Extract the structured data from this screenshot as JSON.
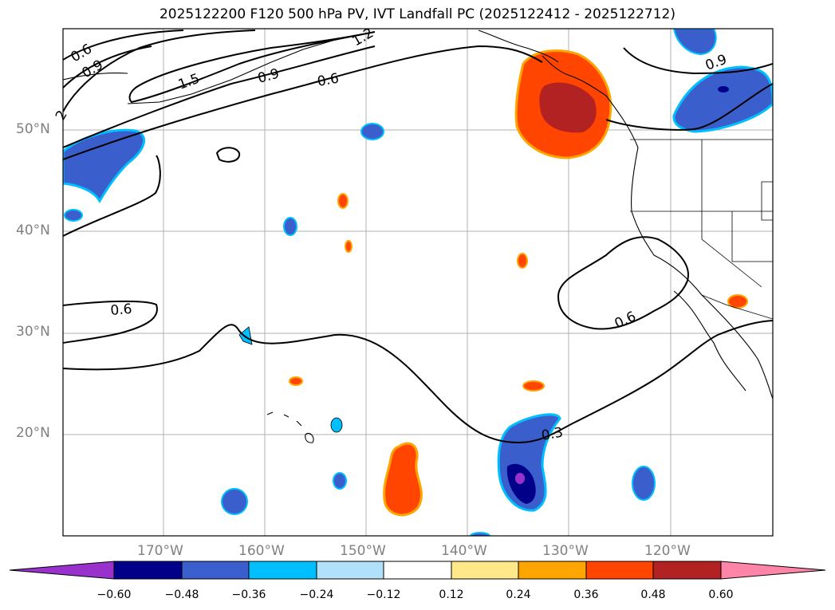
{
  "title": "2025122200 F120 500 hPa PV, IVT Landfall PC (2025122412 - 2025122712)",
  "lon_ticks": [
    "170°W",
    "160°W",
    "150°W",
    "140°W",
    "130°W",
    "120°W"
  ],
  "lat_ticks": [
    "50°N",
    "40°N",
    "30°N",
    "20°N"
  ],
  "contour_labels": [
    "0.6",
    "0.9",
    "2",
    "1.5",
    "0.9",
    "1.2",
    "0.6",
    "0.9",
    "0.6",
    "0.6",
    "0.3"
  ],
  "colorbar": {
    "ticks": [
      "−0.60",
      "−0.48",
      "−0.36",
      "−0.24",
      "−0.12",
      "0.12",
      "0.24",
      "0.36",
      "0.48",
      "0.60"
    ],
    "colors": [
      "#9932cc",
      "#00008b",
      "#3a5fcd",
      "#00bfff",
      "#b0e0fa",
      "#ffffff",
      "#ffe88a",
      "#ffa500",
      "#ff4500",
      "#b22222",
      "#ff85a8"
    ]
  },
  "colors": {
    "neg_strong": "#3a5fcd",
    "neg_mid": "#00bfff",
    "neg_core": "#00008b",
    "neg_peak": "#9932cc",
    "pos_mid": "#ff4500",
    "pos_light": "#ffa500",
    "pos_strong": "#b22222"
  }
}
